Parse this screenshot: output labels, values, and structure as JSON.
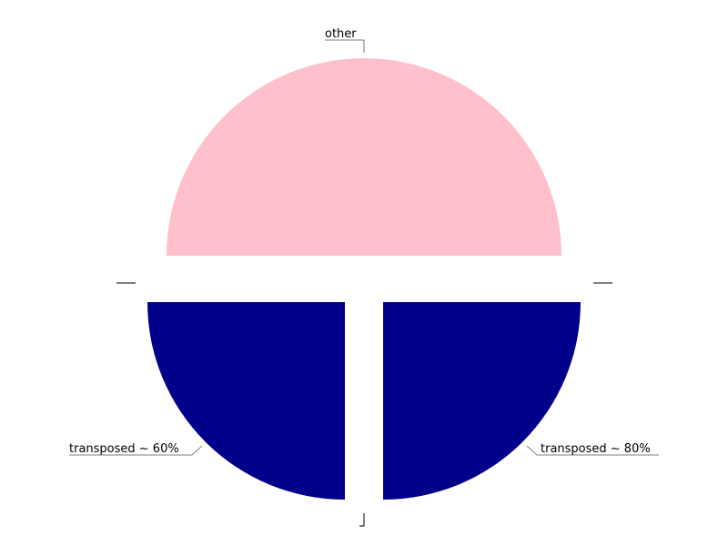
{
  "chart_data": {
    "type": "pie",
    "title": "",
    "slices": [
      {
        "label": "other",
        "value": 50,
        "color": "#ffc0cb"
      },
      {
        "label": "transposed ~ 80%",
        "value": 25,
        "color": "#00008b"
      },
      {
        "label": "transposed ~ 60%",
        "value": 25,
        "color": "#00008b"
      }
    ],
    "unlabeled_slices": [
      {
        "value": 0
      },
      {
        "value": 0
      },
      {
        "value": 0
      }
    ],
    "start_angle": "left, counterclockwise",
    "exploded": true,
    "legend": "none"
  }
}
